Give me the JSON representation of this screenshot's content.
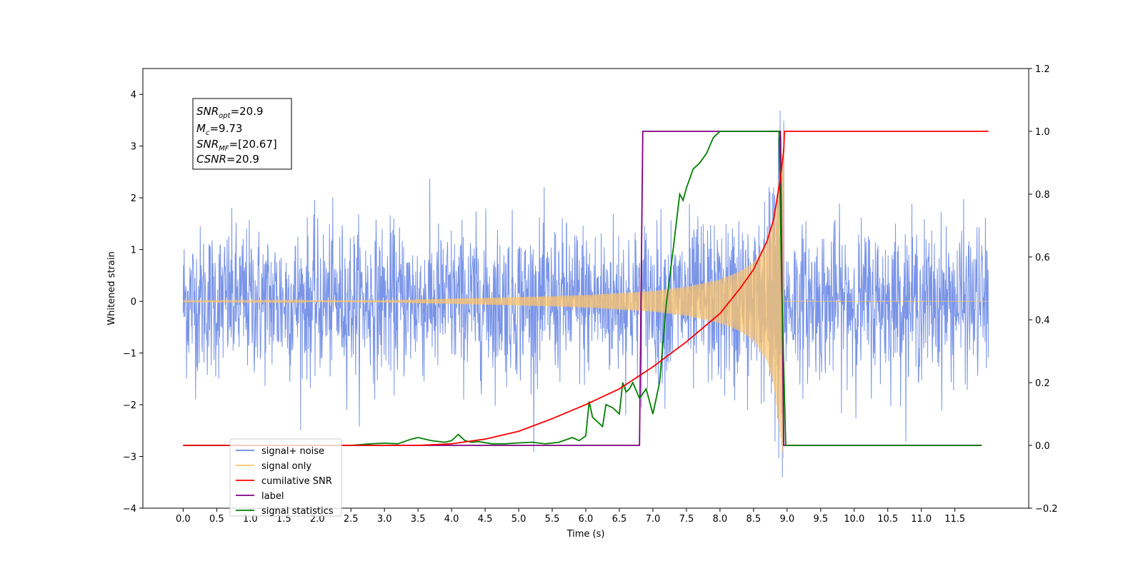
{
  "chart_data": {
    "type": "line",
    "xlabel": "Time (s)",
    "ylabel": "Whitened strain",
    "xlim": [
      -0.6,
      12.6
    ],
    "ylim": [
      -4,
      4.5
    ],
    "y2lim": [
      -0.2,
      1.2
    ],
    "x_ticks": [
      0.0,
      0.5,
      1.0,
      1.5,
      2.0,
      2.5,
      3.0,
      3.5,
      4.0,
      4.5,
      5.0,
      5.5,
      6.0,
      6.5,
      7.0,
      7.5,
      8.0,
      8.5,
      9.0,
      9.5,
      10.0,
      10.5,
      11.0,
      11.5
    ],
    "x_tick_labels": [
      "0.0",
      "0.5",
      "1.0",
      "1.5",
      "2.0",
      "2.5",
      "3.0",
      "3.5",
      "4.0",
      "4.5",
      "5.0",
      "5.5",
      "6.0",
      "6.5",
      "7.0",
      "7.5",
      "8.0",
      "8.5",
      "9.0",
      "9.5",
      "10.0",
      "10.5",
      "11.0",
      "11.5"
    ],
    "y_ticks": [
      -4,
      -3,
      -2,
      -1,
      0,
      1,
      2,
      3,
      4
    ],
    "y_tick_labels": [
      "−4",
      "−3",
      "−2",
      "−1",
      "0",
      "1",
      "2",
      "3",
      "4"
    ],
    "y2_ticks": [
      -0.2,
      0.0,
      0.2,
      0.4,
      0.6,
      0.8,
      1.0,
      1.2
    ],
    "y2_tick_labels": [
      "−0.2",
      "0.0",
      "0.2",
      "0.4",
      "0.6",
      "0.8",
      "1.0",
      "1.2"
    ],
    "grid": false,
    "legend_placement": "lower-left",
    "legend": [
      {
        "label": "signal+ noise",
        "color": "#6a88e5"
      },
      {
        "label": "signal only",
        "color": "#ffc46a"
      },
      {
        "label": "cumilative SNR",
        "color": "#ff0000"
      },
      {
        "label": "label",
        "color": "#800080"
      },
      {
        "label": "signal statistics",
        "color": "#008000"
      }
    ],
    "annotation": {
      "line1": {
        "base": "SNR",
        "sub": "opt",
        "rest": "=20.9"
      },
      "line2": {
        "base": "M",
        "sub": "c",
        "rest": "=9.73"
      },
      "line3": {
        "base": "SNR",
        "sub": "MF",
        "rest": "=[20.67]"
      },
      "line4": {
        "base": "CSNR",
        "sub": "",
        "rest": "=20.9"
      }
    },
    "series": [
      {
        "name": "signal+ noise",
        "axis": "left",
        "color": "#6a88e5",
        "style": "noise",
        "x_range": [
          0.0,
          12.0
        ],
        "band_extreme": [
          -3.4,
          4.1
        ],
        "typical_band": [
          -2.0,
          2.2
        ]
      },
      {
        "name": "signal only",
        "axis": "left",
        "color": "#ffc46a",
        "style": "chirp",
        "x_range": [
          0.0,
          8.95
        ],
        "envelope": {
          "x": [
            0.0,
            3.0,
            4.0,
            5.0,
            6.0,
            7.0,
            7.5,
            8.0,
            8.3,
            8.5,
            8.7,
            8.8,
            8.9,
            8.95
          ],
          "y": [
            0.01,
            0.02,
            0.05,
            0.08,
            0.12,
            0.2,
            0.28,
            0.42,
            0.58,
            0.75,
            1.15,
            1.6,
            2.6,
            3.1
          ]
        }
      },
      {
        "name": "cumilative SNR",
        "axis": "right",
        "color": "#ff0000",
        "style": "line",
        "x": [
          0.0,
          3.5,
          4.0,
          4.5,
          5.0,
          5.5,
          6.0,
          6.5,
          7.0,
          7.5,
          8.0,
          8.3,
          8.5,
          8.7,
          8.8,
          8.9,
          8.95,
          8.96,
          9.0,
          10.0,
          11.0,
          12.0
        ],
        "y": [
          0.0,
          0.0,
          0.005,
          0.02,
          0.045,
          0.085,
          0.13,
          0.18,
          0.25,
          0.33,
          0.42,
          0.5,
          0.56,
          0.65,
          0.72,
          0.85,
          0.94,
          1.0,
          1.0,
          1.0,
          1.0,
          1.0
        ]
      },
      {
        "name": "label",
        "axis": "right",
        "color": "#800080",
        "style": "line",
        "x": [
          0.0,
          6.8,
          6.85,
          8.9,
          8.95,
          11.9
        ],
        "y": [
          0.0,
          0.0,
          1.0,
          1.0,
          0.0,
          0.0
        ]
      },
      {
        "name": "signal statistics",
        "axis": "right",
        "color": "#008000",
        "style": "line",
        "x": [
          0.0,
          2.5,
          2.8,
          3.0,
          3.2,
          3.4,
          3.5,
          3.7,
          3.9,
          4.0,
          4.1,
          4.2,
          4.3,
          4.4,
          4.6,
          4.8,
          5.0,
          5.2,
          5.4,
          5.6,
          5.8,
          5.9,
          6.0,
          6.05,
          6.1,
          6.2,
          6.25,
          6.3,
          6.4,
          6.5,
          6.55,
          6.6,
          6.65,
          6.7,
          6.8,
          6.9,
          7.0,
          7.05,
          7.1,
          7.2,
          7.3,
          7.4,
          7.45,
          7.5,
          7.6,
          7.7,
          7.8,
          7.9,
          8.0,
          8.1,
          8.3,
          8.5,
          8.7,
          8.88,
          8.92,
          8.98,
          9.0,
          9.5,
          10.0,
          11.0,
          11.9
        ],
        "y": [
          0.0,
          0.0,
          0.005,
          0.007,
          0.005,
          0.02,
          0.025,
          0.015,
          0.01,
          0.015,
          0.035,
          0.015,
          0.01,
          0.012,
          0.005,
          0.005,
          0.008,
          0.01,
          0.005,
          0.01,
          0.025,
          0.015,
          0.03,
          0.14,
          0.09,
          0.07,
          0.06,
          0.13,
          0.12,
          0.1,
          0.2,
          0.17,
          0.18,
          0.2,
          0.15,
          0.18,
          0.1,
          0.15,
          0.2,
          0.45,
          0.62,
          0.8,
          0.78,
          0.82,
          0.88,
          0.9,
          0.93,
          0.98,
          1.0,
          1.0,
          1.0,
          1.0,
          1.0,
          1.0,
          0.5,
          0.0,
          0.0,
          0.0,
          0.0,
          0.0,
          0.0
        ]
      }
    ]
  }
}
